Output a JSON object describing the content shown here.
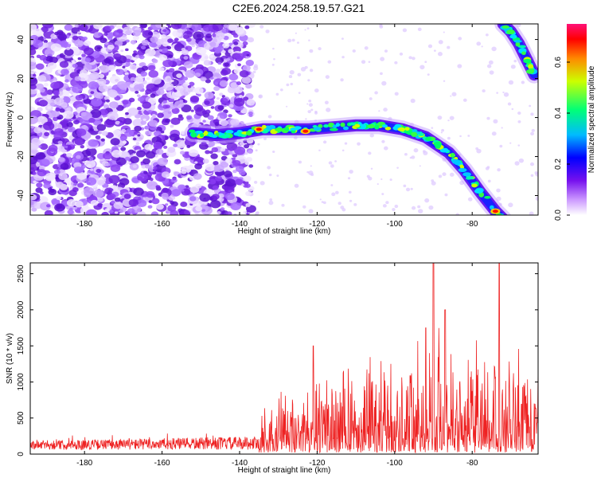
{
  "title": "C2E6.2024.258.19.57.G21",
  "colors": {
    "snr_line": "#ee2222",
    "axis": "#000000",
    "colormap": [
      "#ffffff",
      "#9966ff",
      "#6611dd",
      "#0000ff",
      "#00ccff",
      "#00ff66",
      "#ffff00",
      "#ff0000",
      "#ff00aa"
    ]
  },
  "chart_data": [
    {
      "type": "heatmap",
      "xlabel": "Height of straight line (km)",
      "ylabel": "Frequency (Hz)",
      "xlim": [
        -194,
        -63
      ],
      "ylim": [
        -50,
        48
      ],
      "xticks": [
        -180,
        -160,
        -140,
        -120,
        -100,
        -80
      ],
      "yticks": [
        -40,
        -20,
        0,
        20,
        40
      ],
      "colorbar": {
        "label": "Normalized spectral amplitude",
        "range": [
          0,
          0.75
        ],
        "ticks": [
          "0.0",
          "0.2",
          "0.4",
          "0.6"
        ]
      },
      "ridge": {
        "x": [
          -152,
          -146,
          -140,
          -134,
          -128,
          -122,
          -116,
          -110,
          -104,
          -98,
          -92,
          -86,
          -82,
          -78,
          -74,
          -72
        ],
        "y": [
          -8,
          -9,
          -8,
          -6,
          -6,
          -6,
          -5,
          -4,
          -4,
          -6,
          -10,
          -18,
          -27,
          -38,
          -48,
          -52
        ]
      },
      "upper_ridge": {
        "x": [
          -72,
          -70,
          -68,
          -66,
          -64
        ],
        "y": [
          48,
          44,
          38,
          30,
          22
        ]
      },
      "noise_region_x": [
        -194,
        -137
      ]
    },
    {
      "type": "line",
      "xlabel": "Height of straight line (km)",
      "ylabel": "SNR (10 * v/v)",
      "xlim": [
        -194,
        -63
      ],
      "ylim": [
        0,
        2650
      ],
      "xticks": [
        -180,
        -160,
        -140,
        -120,
        -100,
        -80
      ],
      "yticks": [
        0,
        500,
        1000,
        1500,
        2000,
        2500
      ],
      "envelope": {
        "x": [
          -194,
          -180,
          -160,
          -140,
          -135,
          -134,
          -128,
          -120,
          -112,
          -105,
          -100,
          -95,
          -90,
          -85,
          -80,
          -75,
          -70,
          -63
        ],
        "y": [
          190,
          200,
          220,
          240,
          250,
          500,
          550,
          720,
          820,
          900,
          950,
          1050,
          1150,
          1100,
          1050,
          1000,
          900,
          850
        ]
      },
      "peaks": [
        {
          "x": -121,
          "y": 1500
        },
        {
          "x": -90,
          "y": 2650
        },
        {
          "x": -73,
          "y": 2650
        },
        {
          "x": -87,
          "y": 2000
        },
        {
          "x": -92,
          "y": 1750
        }
      ]
    }
  ]
}
